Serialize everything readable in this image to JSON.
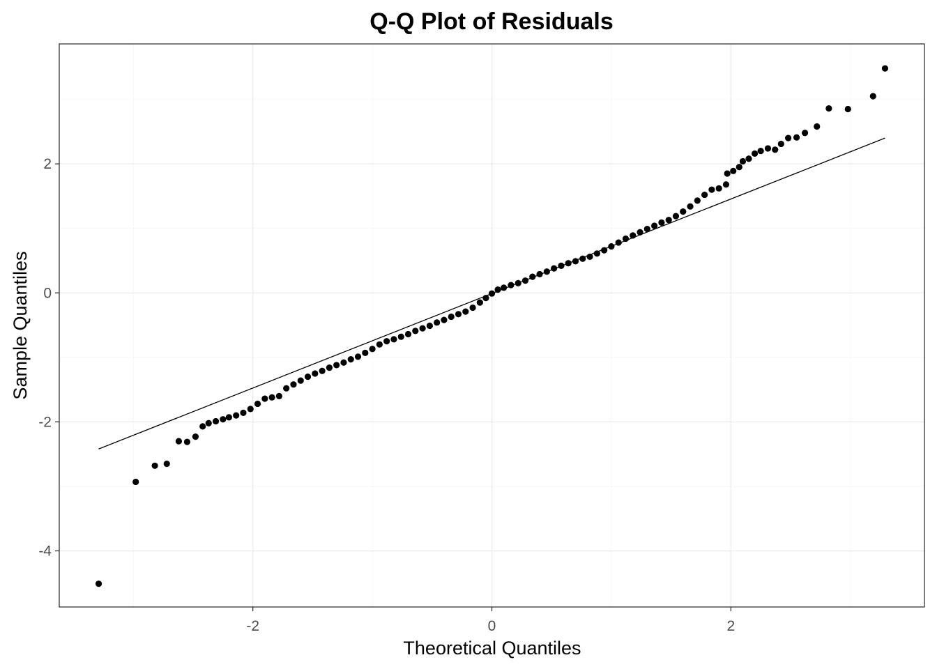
{
  "chart_data": {
    "type": "scatter",
    "title": "Q-Q Plot of Residuals",
    "xlabel": "Theoretical Quantiles",
    "ylabel": "Sample Quantiles",
    "xlim": [
      -3.62,
      3.62
    ],
    "ylim": [
      -4.87,
      3.86
    ],
    "x_ticks": [
      -2,
      0,
      2
    ],
    "x_tick_labels": [
      "-2",
      "0",
      "2"
    ],
    "y_ticks": [
      -4,
      -2,
      0,
      2
    ],
    "y_tick_labels": [
      "-4",
      "-2",
      "0",
      "2"
    ],
    "grid": true,
    "legend": "none",
    "reference_line": {
      "x": [
        -3.29,
        3.29
      ],
      "y": [
        -2.42,
        2.4
      ]
    },
    "series": [
      {
        "points": [
          [
            -3.29,
            -4.51
          ],
          [
            -2.98,
            -2.93
          ],
          [
            -2.82,
            -2.68
          ],
          [
            -2.72,
            -2.65
          ],
          [
            -2.62,
            -2.3
          ],
          [
            -2.55,
            -2.31
          ],
          [
            -2.48,
            -2.23
          ],
          [
            -2.42,
            -2.07
          ],
          [
            -2.37,
            -2.02
          ],
          [
            -2.31,
            -1.99
          ],
          [
            -2.25,
            -1.96
          ],
          [
            -2.2,
            -1.93
          ],
          [
            -2.14,
            -1.9
          ],
          [
            -2.08,
            -1.86
          ],
          [
            -2.02,
            -1.8
          ],
          [
            -1.96,
            -1.72
          ],
          [
            -1.9,
            -1.64
          ],
          [
            -1.84,
            -1.62
          ],
          [
            -1.78,
            -1.6
          ],
          [
            -1.72,
            -1.48
          ],
          [
            -1.66,
            -1.42
          ],
          [
            -1.6,
            -1.36
          ],
          [
            -1.54,
            -1.3
          ],
          [
            -1.48,
            -1.25
          ],
          [
            -1.42,
            -1.21
          ],
          [
            -1.36,
            -1.16
          ],
          [
            -1.3,
            -1.12
          ],
          [
            -1.24,
            -1.08
          ],
          [
            -1.18,
            -1.03
          ],
          [
            -1.12,
            -0.99
          ],
          [
            -1.06,
            -0.93
          ],
          [
            -1.0,
            -0.87
          ],
          [
            -0.94,
            -0.8
          ],
          [
            -0.88,
            -0.75
          ],
          [
            -0.82,
            -0.72
          ],
          [
            -0.76,
            -0.68
          ],
          [
            -0.7,
            -0.64
          ],
          [
            -0.64,
            -0.59
          ],
          [
            -0.58,
            -0.55
          ],
          [
            -0.52,
            -0.51
          ],
          [
            -0.46,
            -0.46
          ],
          [
            -0.4,
            -0.42
          ],
          [
            -0.34,
            -0.37
          ],
          [
            -0.28,
            -0.33
          ],
          [
            -0.22,
            -0.29
          ],
          [
            -0.16,
            -0.23
          ],
          [
            -0.1,
            -0.15
          ],
          [
            -0.05,
            -0.08
          ],
          [
            0.0,
            -0.01
          ],
          [
            0.05,
            0.05
          ],
          [
            0.1,
            0.08
          ],
          [
            0.16,
            0.12
          ],
          [
            0.22,
            0.15
          ],
          [
            0.28,
            0.19
          ],
          [
            0.34,
            0.25
          ],
          [
            0.4,
            0.29
          ],
          [
            0.46,
            0.33
          ],
          [
            0.52,
            0.38
          ],
          [
            0.58,
            0.42
          ],
          [
            0.64,
            0.46
          ],
          [
            0.7,
            0.49
          ],
          [
            0.76,
            0.53
          ],
          [
            0.82,
            0.56
          ],
          [
            0.88,
            0.61
          ],
          [
            0.94,
            0.66
          ],
          [
            1.0,
            0.72
          ],
          [
            1.06,
            0.78
          ],
          [
            1.12,
            0.84
          ],
          [
            1.18,
            0.89
          ],
          [
            1.24,
            0.94
          ],
          [
            1.3,
            0.99
          ],
          [
            1.36,
            1.04
          ],
          [
            1.42,
            1.09
          ],
          [
            1.48,
            1.13
          ],
          [
            1.54,
            1.19
          ],
          [
            1.6,
            1.26
          ],
          [
            1.66,
            1.34
          ],
          [
            1.72,
            1.43
          ],
          [
            1.78,
            1.52
          ],
          [
            1.84,
            1.6
          ],
          [
            1.9,
            1.62
          ],
          [
            1.96,
            1.68
          ],
          [
            1.97,
            1.85
          ],
          [
            2.02,
            1.89
          ],
          [
            2.07,
            1.95
          ],
          [
            2.1,
            2.04
          ],
          [
            2.15,
            2.08
          ],
          [
            2.2,
            2.16
          ],
          [
            2.25,
            2.2
          ],
          [
            2.31,
            2.24
          ],
          [
            2.37,
            2.22
          ],
          [
            2.42,
            2.31
          ],
          [
            2.48,
            2.4
          ],
          [
            2.55,
            2.41
          ],
          [
            2.62,
            2.48
          ],
          [
            2.72,
            2.58
          ],
          [
            2.82,
            2.86
          ],
          [
            2.98,
            2.85
          ],
          [
            3.19,
            3.05
          ],
          [
            3.29,
            3.48
          ]
        ]
      }
    ]
  }
}
